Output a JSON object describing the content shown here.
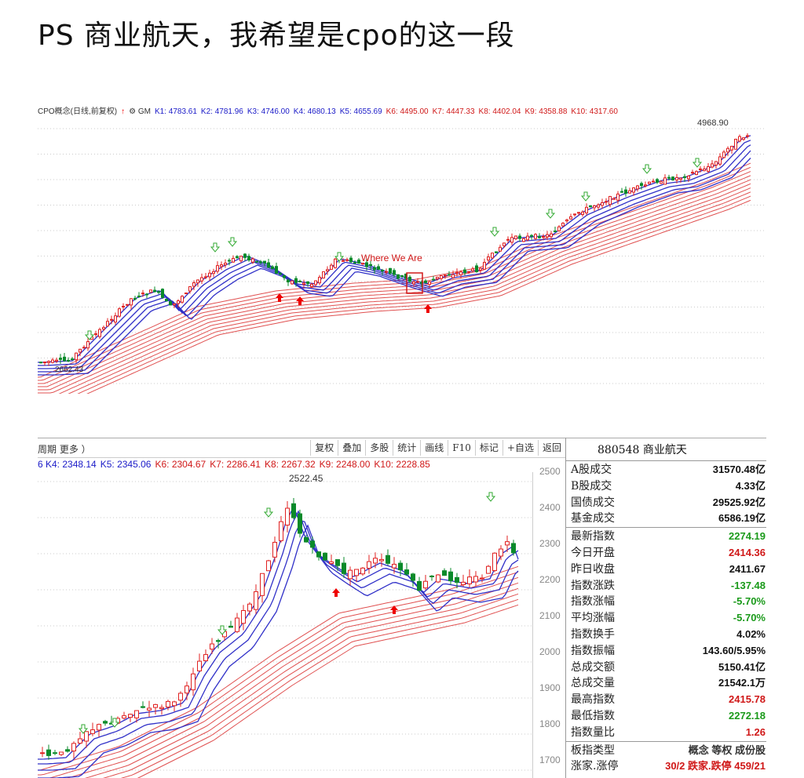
{
  "post_title": "PS 商业航天，我希望是cpo的这一段",
  "chart1": {
    "header": [
      {
        "text": "CPO概念(日线,前复权)",
        "color": "#333"
      },
      {
        "text": "↑",
        "color": "#e00"
      },
      {
        "text": "⚙ GM",
        "color": "#333"
      },
      {
        "text": "K1: 4783.61",
        "color": "#1a1ac8"
      },
      {
        "text": "K2: 4781.96",
        "color": "#1a1ac8"
      },
      {
        "text": "K3: 4746.00",
        "color": "#1a1ac8"
      },
      {
        "text": "K4: 4680.13",
        "color": "#1a1ac8"
      },
      {
        "text": "K5: 4655.69",
        "color": "#1a1ac8"
      },
      {
        "text": "K6: 4495.00",
        "color": "#d01818"
      },
      {
        "text": "K7: 4447.33",
        "color": "#d01818"
      },
      {
        "text": "K8: 4402.04",
        "color": "#d01818"
      },
      {
        "text": "K9: 4358.88",
        "color": "#d01818"
      },
      {
        "text": "K10: 4317.60",
        "color": "#d01818"
      }
    ],
    "high_label": "4968.90",
    "low_label": "2662.43",
    "annotation": "Where We Are"
  },
  "toolbar": {
    "left": "周期  更多 ）",
    "buttons": [
      "复权",
      "叠加",
      "多股",
      "统计",
      "画线",
      "F10",
      "标记",
      "+自选",
      "返回"
    ]
  },
  "chart2": {
    "header": [
      {
        "text": "6 K4: 2348.14",
        "color": "#1a1ac8"
      },
      {
        "text": "K5: 2345.06",
        "color": "#1a1ac8"
      },
      {
        "text": "K6: 2304.67",
        "color": "#d01818"
      },
      {
        "text": "K7: 2286.41",
        "color": "#d01818"
      },
      {
        "text": "K8: 2267.32",
        "color": "#d01818"
      },
      {
        "text": "K9: 2248.00",
        "color": "#d01818"
      },
      {
        "text": "K10: 2228.85",
        "color": "#d01818"
      }
    ],
    "high_label": "2522.45",
    "y_ticks": [
      "2500",
      "2400",
      "2300",
      "2200",
      "2100",
      "2000",
      "1900",
      "1800",
      "1700"
    ]
  },
  "panel": {
    "title": "880548 商业航天",
    "rows": [
      {
        "label": "A股成交",
        "value": "31570.48亿",
        "color": "#111"
      },
      {
        "label": "B股成交",
        "value": "4.33亿",
        "color": "#111"
      },
      {
        "label": "国债成交",
        "value": "29525.92亿",
        "color": "#111"
      },
      {
        "label": "基金成交",
        "value": "6586.19亿",
        "color": "#111"
      },
      {
        "label": "最新指数",
        "value": "2274.19",
        "color": "#1a9a1a"
      },
      {
        "label": "今日开盘",
        "value": "2414.36",
        "color": "#d01818"
      },
      {
        "label": "昨日收盘",
        "value": "2411.67",
        "color": "#111"
      },
      {
        "label": "指数涨跌",
        "value": "-137.48",
        "color": "#1a9a1a"
      },
      {
        "label": "指数涨幅",
        "value": "-5.70%",
        "color": "#1a9a1a"
      },
      {
        "label": "平均涨幅",
        "value": "-5.70%",
        "color": "#1a9a1a"
      },
      {
        "label": "指数换手",
        "value": "4.02%",
        "color": "#111"
      },
      {
        "label": "指数振幅",
        "value": "143.60/5.95%",
        "color": "#111"
      },
      {
        "label": "总成交额",
        "value": "5150.41亿",
        "color": "#111"
      },
      {
        "label": "总成交量",
        "value": "21542.1万",
        "color": "#111"
      },
      {
        "label": "最高指数",
        "value": "2415.78",
        "color": "#d01818"
      },
      {
        "label": "最低指数",
        "value": "2272.18",
        "color": "#1a9a1a"
      },
      {
        "label": "指数量比",
        "value": "1.26",
        "color": "#d01818"
      },
      {
        "label": "板指类型",
        "value": "概念 等权 成份股",
        "color": "#333"
      },
      {
        "label": "涨家.涨停",
        "value": "30/2 跌家.跌停 459/21",
        "color": "#d01818"
      }
    ]
  }
}
